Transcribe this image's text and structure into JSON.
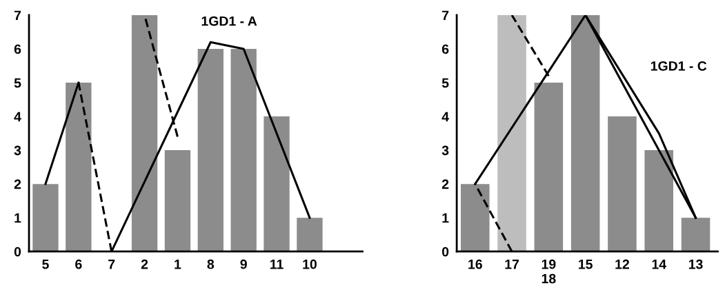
{
  "chart_data": [
    {
      "type": "bar",
      "title": "1GD1 - A",
      "categories": [
        "5",
        "6",
        "7",
        "2",
        "1",
        "8",
        "9",
        "11",
        "10"
      ],
      "values": [
        2,
        5,
        0,
        7,
        3,
        6,
        6,
        4,
        1
      ],
      "colors": [
        "#8c8c8c",
        "#8c8c8c",
        "#8c8c8c",
        "#8c8c8c",
        "#8c8c8c",
        "#8c8c8c",
        "#8c8c8c",
        "#8c8c8c",
        "#8c8c8c"
      ],
      "ylim": [
        0,
        7
      ],
      "yticks": [
        0,
        1,
        2,
        3,
        4,
        5,
        6,
        7
      ],
      "grid": false,
      "legend": false,
      "series": [
        {
          "type": "line",
          "color": "#000000",
          "line_style": "solid",
          "values": [
            2,
            5,
            null,
            null,
            null,
            null,
            null,
            null,
            null
          ]
        },
        {
          "type": "line",
          "color": "#000000",
          "line_style": "dashed",
          "values": [
            null,
            5,
            0,
            null,
            null,
            null,
            null,
            null,
            null
          ]
        },
        {
          "type": "line",
          "color": "#000000",
          "line_style": "solid",
          "values": [
            null,
            null,
            0,
            null,
            null,
            6.2,
            6,
            null,
            1
          ]
        },
        {
          "type": "line",
          "color": "#000000",
          "line_style": "dashed",
          "values": [
            null,
            null,
            null,
            7,
            3.4,
            null,
            null,
            null,
            null
          ]
        }
      ]
    },
    {
      "type": "bar",
      "title": "1GD1 - C",
      "categories": [
        "16",
        "17",
        "19\n18",
        "15",
        "12",
        "14",
        "13"
      ],
      "values": [
        2,
        7,
        5,
        7,
        4,
        3,
        1
      ],
      "colors": [
        "#8c8c8c",
        "#bdbdbd",
        "#8c8c8c",
        "#8c8c8c",
        "#8c8c8c",
        "#8c8c8c",
        "#8c8c8c"
      ],
      "ylim": [
        0,
        7
      ],
      "yticks": [
        0,
        1,
        2,
        3,
        4,
        5,
        6,
        7
      ],
      "grid": false,
      "legend": false,
      "series": [
        {
          "type": "line",
          "color": "#000000",
          "line_style": "dashed",
          "values": [
            2,
            0,
            null,
            null,
            null,
            null,
            null
          ]
        },
        {
          "type": "line",
          "color": "#000000",
          "line_style": "dashed",
          "values": [
            null,
            7,
            5.2,
            null,
            null,
            null,
            null
          ]
        },
        {
          "type": "line",
          "color": "#000000",
          "line_style": "solid",
          "values": [
            2,
            null,
            null,
            7,
            null,
            null,
            null
          ]
        },
        {
          "type": "line",
          "color": "#000000",
          "line_style": "solid",
          "values": [
            null,
            null,
            null,
            7,
            null,
            null,
            1
          ]
        },
        {
          "type": "line",
          "color": "#000000",
          "line_style": "solid",
          "values": [
            null,
            null,
            null,
            7,
            null,
            3.5,
            1
          ]
        }
      ]
    }
  ]
}
